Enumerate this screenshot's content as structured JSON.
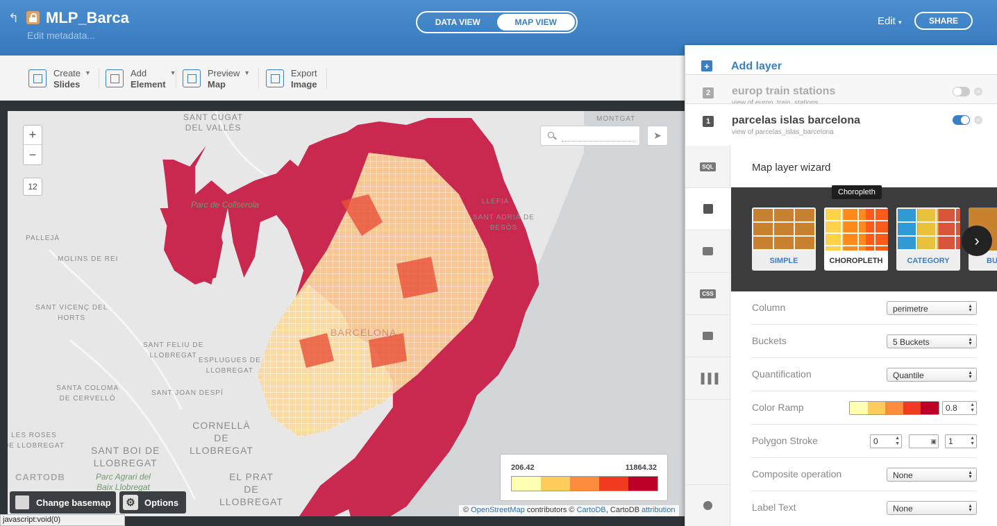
{
  "header": {
    "back_icon": "back-arrow-icon",
    "title": "MLP_Barca",
    "subtitle": "Edit metadata...",
    "tabs": [
      "DATA VIEW",
      "MAP VIEW"
    ],
    "active_tab": "MAP VIEW",
    "edit_label": "Edit",
    "share_label": "SHARE"
  },
  "toolbar": {
    "create": {
      "line1": "Create",
      "line2": "Slides"
    },
    "add": {
      "line1": "Add",
      "line2": "Element"
    },
    "preview": {
      "line1": "Preview",
      "line2": "Map"
    },
    "export": {
      "line1": "Export",
      "line2": "Image"
    }
  },
  "map": {
    "zoom_in": "+",
    "zoom_out": "−",
    "zoom_level": "12",
    "places": {
      "sant_cugat": "SANT CUGAT\nDEL VALLÈS",
      "montgat": "MONTGAT",
      "collserola": "Parc de Collserola",
      "lleffia": "LLEFIA",
      "sant_adria": "SANT ADRIÀ DE\nBESÒS",
      "palleja": "PALLEJÀ",
      "molins": "MOLINS DE REI",
      "sant_vicenc": "SANT VICENÇ DEL\nHORTS",
      "sant_feliu": "SANT FELIU DE\nLLOBREGAT",
      "esplugues": "ESPLUGUES DE\nLLOBREGAT",
      "barcelona": "BARCELONA",
      "santa_coloma": "SANTA COLOMA\nDE CERVELLÓ",
      "sant_joan": "SANT JOAN DESPÍ",
      "cornella": "CORNELLÀ\nDE\nLLOBREGAT",
      "les_roses": "LES ROSES\nDE LLOBREGAT",
      "sant_boi": "SANT BOI DE\nLLOBREGAT",
      "prat": "EL PRAT\nDE\nLLOBREGAT",
      "agrari": "Parc Agrari del\nBaix Llobregat"
    },
    "logo": "CARTODB",
    "attribution": {
      "prefix": "© ",
      "osm": "OpenStreetMap",
      "middle": " contributors © ",
      "cartodb": "CartoDB",
      "comma": ", CartoDB ",
      "attr": "attribution"
    },
    "legend": {
      "min": "206.42",
      "max": "11864.32"
    },
    "change_basemap": "Change basemap",
    "options": "Options"
  },
  "status_bar": "javascript:void(0)",
  "panel": {
    "add_layer": "Add layer",
    "layers": [
      {
        "num": "2",
        "name": "europ train stations",
        "sub": "view of europ_train_stations",
        "enabled": false
      },
      {
        "num": "1",
        "name": "parcelas islas barcelona",
        "sub": "view of parcelas_islas_barcelona",
        "enabled": true
      }
    ],
    "side_tabs": [
      "SQL",
      "wizard",
      "infowindow",
      "CSS",
      "legend",
      "filters",
      "labels"
    ],
    "wizard_title": "Map layer wizard",
    "tooltip": "Choropleth",
    "viz_types": [
      "SIMPLE",
      "CHOROPLETH",
      "CATEGORY",
      "BUBBLE"
    ],
    "selected_viz": "CHOROPLETH",
    "props": {
      "column": {
        "label": "Column",
        "value": "perimetre"
      },
      "buckets": {
        "label": "Buckets",
        "value": "5 Buckets"
      },
      "quantification": {
        "label": "Quantification",
        "value": "Quantile"
      },
      "color_ramp": {
        "label": "Color Ramp",
        "opacity": "0.8"
      },
      "polygon_stroke": {
        "label": "Polygon Stroke",
        "width": "0",
        "opacity": "1"
      },
      "composite": {
        "label": "Composite operation",
        "value": "None"
      },
      "label_text": {
        "label": "Label Text",
        "value": "None"
      }
    }
  },
  "colors": {
    "ramp": [
      "#ffffb2",
      "#fecc5c",
      "#fd8d3c",
      "#f03b20",
      "#bd0026"
    ],
    "accent": "#3a7ec4",
    "polygon_base": "#c9284f"
  }
}
